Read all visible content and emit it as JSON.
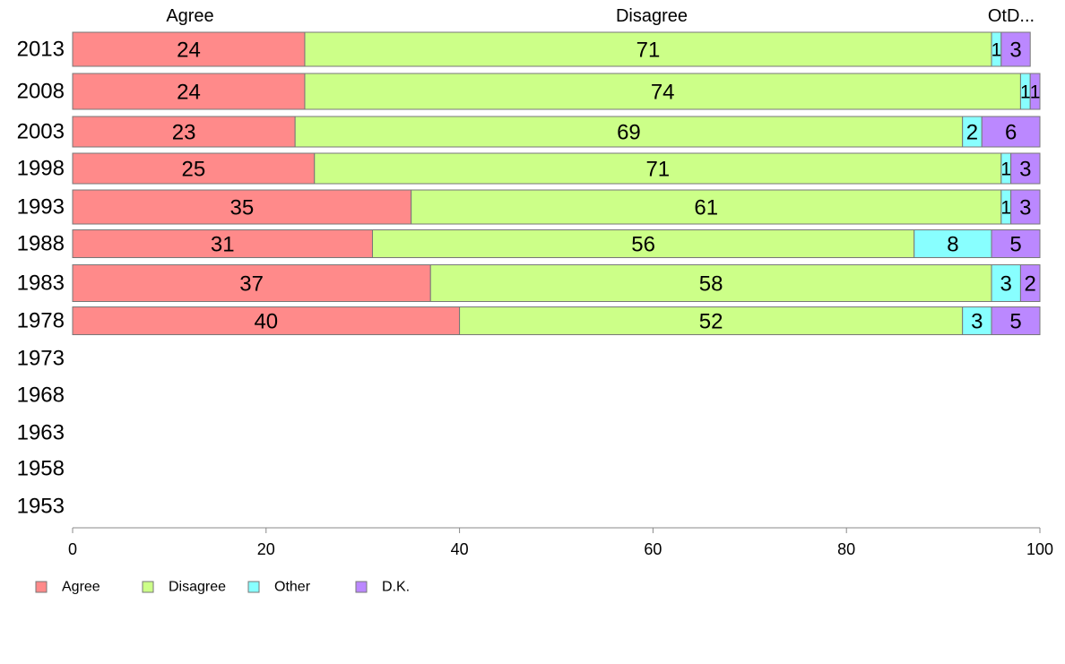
{
  "chart_data": {
    "type": "bar",
    "orientation": "horizontal",
    "stacked": true,
    "categories": [
      "2013",
      "2008",
      "2003",
      "1998",
      "1993",
      "1988",
      "1983",
      "1978",
      "1973",
      "1968",
      "1963",
      "1958",
      "1953"
    ],
    "series": [
      {
        "name": "Agree",
        "color": "#ff8a8a",
        "values": [
          24,
          24,
          23,
          25,
          35,
          31,
          37,
          40,
          null,
          null,
          null,
          null,
          null
        ]
      },
      {
        "name": "Disagree",
        "color": "#ccff88",
        "values": [
          71,
          74,
          69,
          71,
          61,
          56,
          58,
          52,
          null,
          null,
          null,
          null,
          null
        ]
      },
      {
        "name": "Other",
        "color": "#88ffff",
        "values": [
          1,
          1,
          2,
          1,
          1,
          8,
          3,
          3,
          null,
          null,
          null,
          null,
          null
        ]
      },
      {
        "name": "D.K.",
        "color": "#bb88ff",
        "values": [
          3,
          1,
          6,
          3,
          3,
          5,
          2,
          5,
          null,
          null,
          null,
          null,
          null
        ]
      }
    ],
    "top_labels": [
      "Agree",
      "Disagree",
      "OtD..."
    ],
    "xlim": [
      0,
      100
    ],
    "x_ticks": [
      0,
      20,
      40,
      60,
      80,
      100
    ],
    "legend_placement": "bottom-left",
    "grid": false
  }
}
